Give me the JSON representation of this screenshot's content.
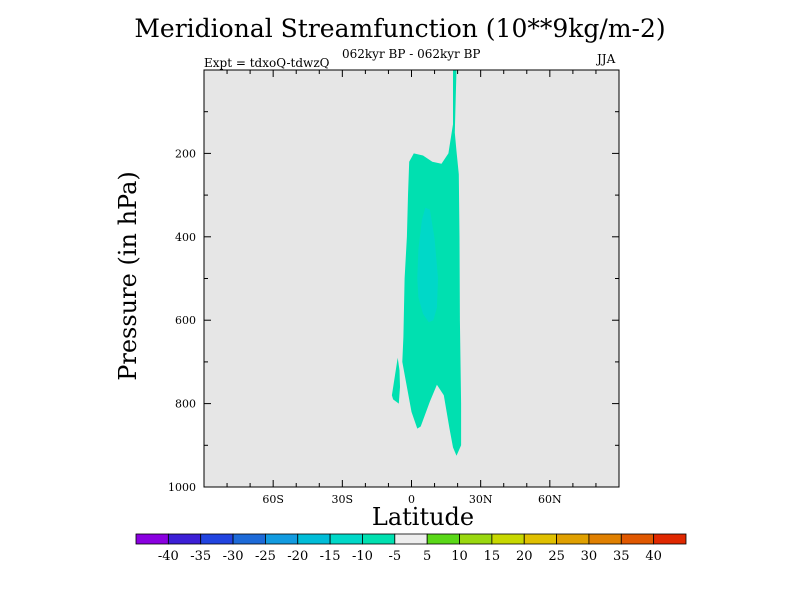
{
  "chart_data": {
    "type": "heatmap",
    "title": "Meridional Streamfunction (10**9kg/m-2)",
    "subtitle_left": "Expt = tdxoQ-tdwzQ",
    "subtitle_center": "062kyr BP - 062kyr BP",
    "subtitle_right": "JJA",
    "xlabel": "Latitude",
    "ylabel": "Pressure (in hPa)",
    "x_ticks": [
      "60S",
      "30S",
      "0",
      "30N",
      "60N"
    ],
    "x_tick_values": [
      -60,
      -30,
      0,
      30,
      60
    ],
    "xlim": [
      -90,
      90
    ],
    "y_ticks": [
      "200",
      "400",
      "600",
      "800",
      "1000"
    ],
    "y_tick_values": [
      200,
      400,
      600,
      800,
      1000
    ],
    "ylim": [
      1000,
      0
    ],
    "colorbar_labels": [
      "-40",
      "-35",
      "-30",
      "-25",
      "-20",
      "-15",
      "-10",
      "-5",
      "5",
      "10",
      "15",
      "20",
      "25",
      "30",
      "35",
      "40"
    ],
    "colorbar_colors": [
      "#8a00e0",
      "#3c1fd6",
      "#2144e0",
      "#1d6ad8",
      "#129be0",
      "#00bdd8",
      "#00d8c8",
      "#00e0b0",
      "#eeeeee",
      "#5ad818",
      "#9ad810",
      "#c8d800",
      "#e0c000",
      "#e0a000",
      "#e08000",
      "#e05800",
      "#e02800"
    ],
    "background_color": "#e6e6e6",
    "regions": [
      {
        "level": "-10 to -5",
        "color": "#00e0b0",
        "outline": [
          [
            18,
            0
          ],
          [
            19.5,
            0
          ],
          [
            19.2,
            60
          ],
          [
            18.8,
            150
          ],
          [
            19.5,
            195
          ],
          [
            20.5,
            250
          ],
          [
            20.8,
            400
          ],
          [
            21,
            600
          ],
          [
            21.5,
            800
          ],
          [
            21.5,
            900
          ],
          [
            19.5,
            925
          ],
          [
            18,
            905
          ],
          [
            16.5,
            860
          ],
          [
            14,
            780
          ],
          [
            11,
            755
          ],
          [
            8,
            795
          ],
          [
            4,
            855
          ],
          [
            2.5,
            860
          ],
          [
            0,
            820
          ],
          [
            -4,
            700
          ],
          [
            -3.5,
            640
          ],
          [
            -3,
            500
          ],
          [
            -2,
            400
          ],
          [
            -1.5,
            300
          ],
          [
            -1,
            220
          ],
          [
            1,
            200
          ],
          [
            5,
            205
          ],
          [
            9,
            220
          ],
          [
            13,
            225
          ],
          [
            16,
            200
          ],
          [
            18,
            130
          ]
        ]
      },
      {
        "level": "-10 to -5",
        "color": "#00e0b0",
        "outline": [
          [
            -8.5,
            780
          ],
          [
            -8,
            790
          ],
          [
            -5.5,
            800
          ],
          [
            -5,
            760
          ],
          [
            -5.2,
            720
          ],
          [
            -6,
            690
          ]
        ]
      },
      {
        "level": "-15 to -10",
        "color": "#00d8c8",
        "outline": [
          [
            3,
            545
          ],
          [
            5,
            585
          ],
          [
            7.5,
            605
          ],
          [
            9.5,
            600
          ],
          [
            11,
            570
          ],
          [
            11.5,
            500
          ],
          [
            10,
            405
          ],
          [
            8,
            335
          ],
          [
            6,
            330
          ],
          [
            4.5,
            360
          ],
          [
            3,
            430
          ],
          [
            2.5,
            500
          ]
        ]
      }
    ]
  }
}
